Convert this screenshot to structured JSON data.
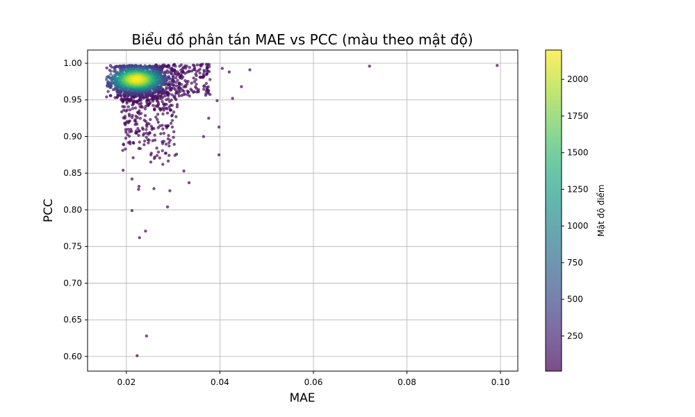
{
  "chart_data": {
    "type": "scatter",
    "title": "Biểu đồ phân tán MAE vs PCC (màu theo mật độ)",
    "xlabel": "MAE",
    "ylabel": "PCC",
    "xlim": [
      0.0117,
      0.1037
    ],
    "ylim": [
      0.58,
      1.018
    ],
    "xticks": [
      0.02,
      0.04,
      0.06,
      0.08,
      0.1
    ],
    "xtick_labels": [
      "0.02",
      "0.04",
      "0.06",
      "0.08",
      "0.10"
    ],
    "yticks": [
      0.6,
      0.65,
      0.7,
      0.75,
      0.8,
      0.85,
      0.9,
      0.95,
      1.0
    ],
    "ytick_labels": [
      "0.60",
      "0.65",
      "0.70",
      "0.75",
      "0.80",
      "0.85",
      "0.90",
      "0.95",
      "1.00"
    ],
    "grid": true,
    "colormap": "viridis",
    "point_alpha": 0.7,
    "colorbar": {
      "label": "Mật độ điểm",
      "range": [
        10,
        2200
      ],
      "ticks": [
        250,
        500,
        750,
        1000,
        1250,
        1500,
        1750,
        2000
      ],
      "tick_labels": [
        "250",
        "500",
        "750",
        "1000",
        "1250",
        "1500",
        "1750",
        "2000"
      ]
    },
    "points": [
      {
        "x": 0.072,
        "y": 0.996,
        "density": 15
      },
      {
        "x": 0.0993,
        "y": 0.997,
        "density": 12
      },
      {
        "x": 0.0223,
        "y": 0.601,
        "density": 15
      },
      {
        "x": 0.0243,
        "y": 0.628,
        "density": 15
      },
      {
        "x": 0.0241,
        "y": 0.771,
        "density": 18
      },
      {
        "x": 0.0228,
        "y": 0.762,
        "density": 18
      },
      {
        "x": 0.0212,
        "y": 0.799,
        "density": 20
      },
      {
        "x": 0.0288,
        "y": 0.804,
        "density": 20
      },
      {
        "x": 0.0293,
        "y": 0.826,
        "density": 25
      },
      {
        "x": 0.0226,
        "y": 0.828,
        "density": 25
      },
      {
        "x": 0.0334,
        "y": 0.837,
        "density": 22
      },
      {
        "x": 0.0323,
        "y": 0.853,
        "density": 25
      },
      {
        "x": 0.0398,
        "y": 0.875,
        "density": 22
      },
      {
        "x": 0.0427,
        "y": 0.952,
        "density": 25
      },
      {
        "x": 0.0446,
        "y": 0.968,
        "density": 25
      },
      {
        "x": 0.0464,
        "y": 0.991,
        "density": 25
      },
      {
        "x": 0.0398,
        "y": 0.913,
        "density": 22
      },
      {
        "x": 0.0394,
        "y": 0.949,
        "density": 25
      },
      {
        "x": 0.042,
        "y": 0.988,
        "density": 28
      },
      {
        "x": 0.0405,
        "y": 0.993,
        "density": 28
      },
      {
        "x": 0.036,
        "y": 0.998,
        "density": 30
      },
      {
        "x": 0.0365,
        "y": 0.9,
        "density": 25
      },
      {
        "x": 0.0376,
        "y": 0.925,
        "density": 25
      },
      {
        "x": 0.0198,
        "y": 0.883,
        "density": 30
      },
      {
        "x": 0.0193,
        "y": 0.854,
        "density": 30
      },
      {
        "x": 0.0212,
        "y": 0.842,
        "density": 30
      },
      {
        "x": 0.0227,
        "y": 0.832,
        "density": 30
      },
      {
        "x": 0.0259,
        "y": 0.829,
        "density": 30
      },
      {
        "x": 0.0278,
        "y": 0.862,
        "density": 30
      }
    ]
  }
}
